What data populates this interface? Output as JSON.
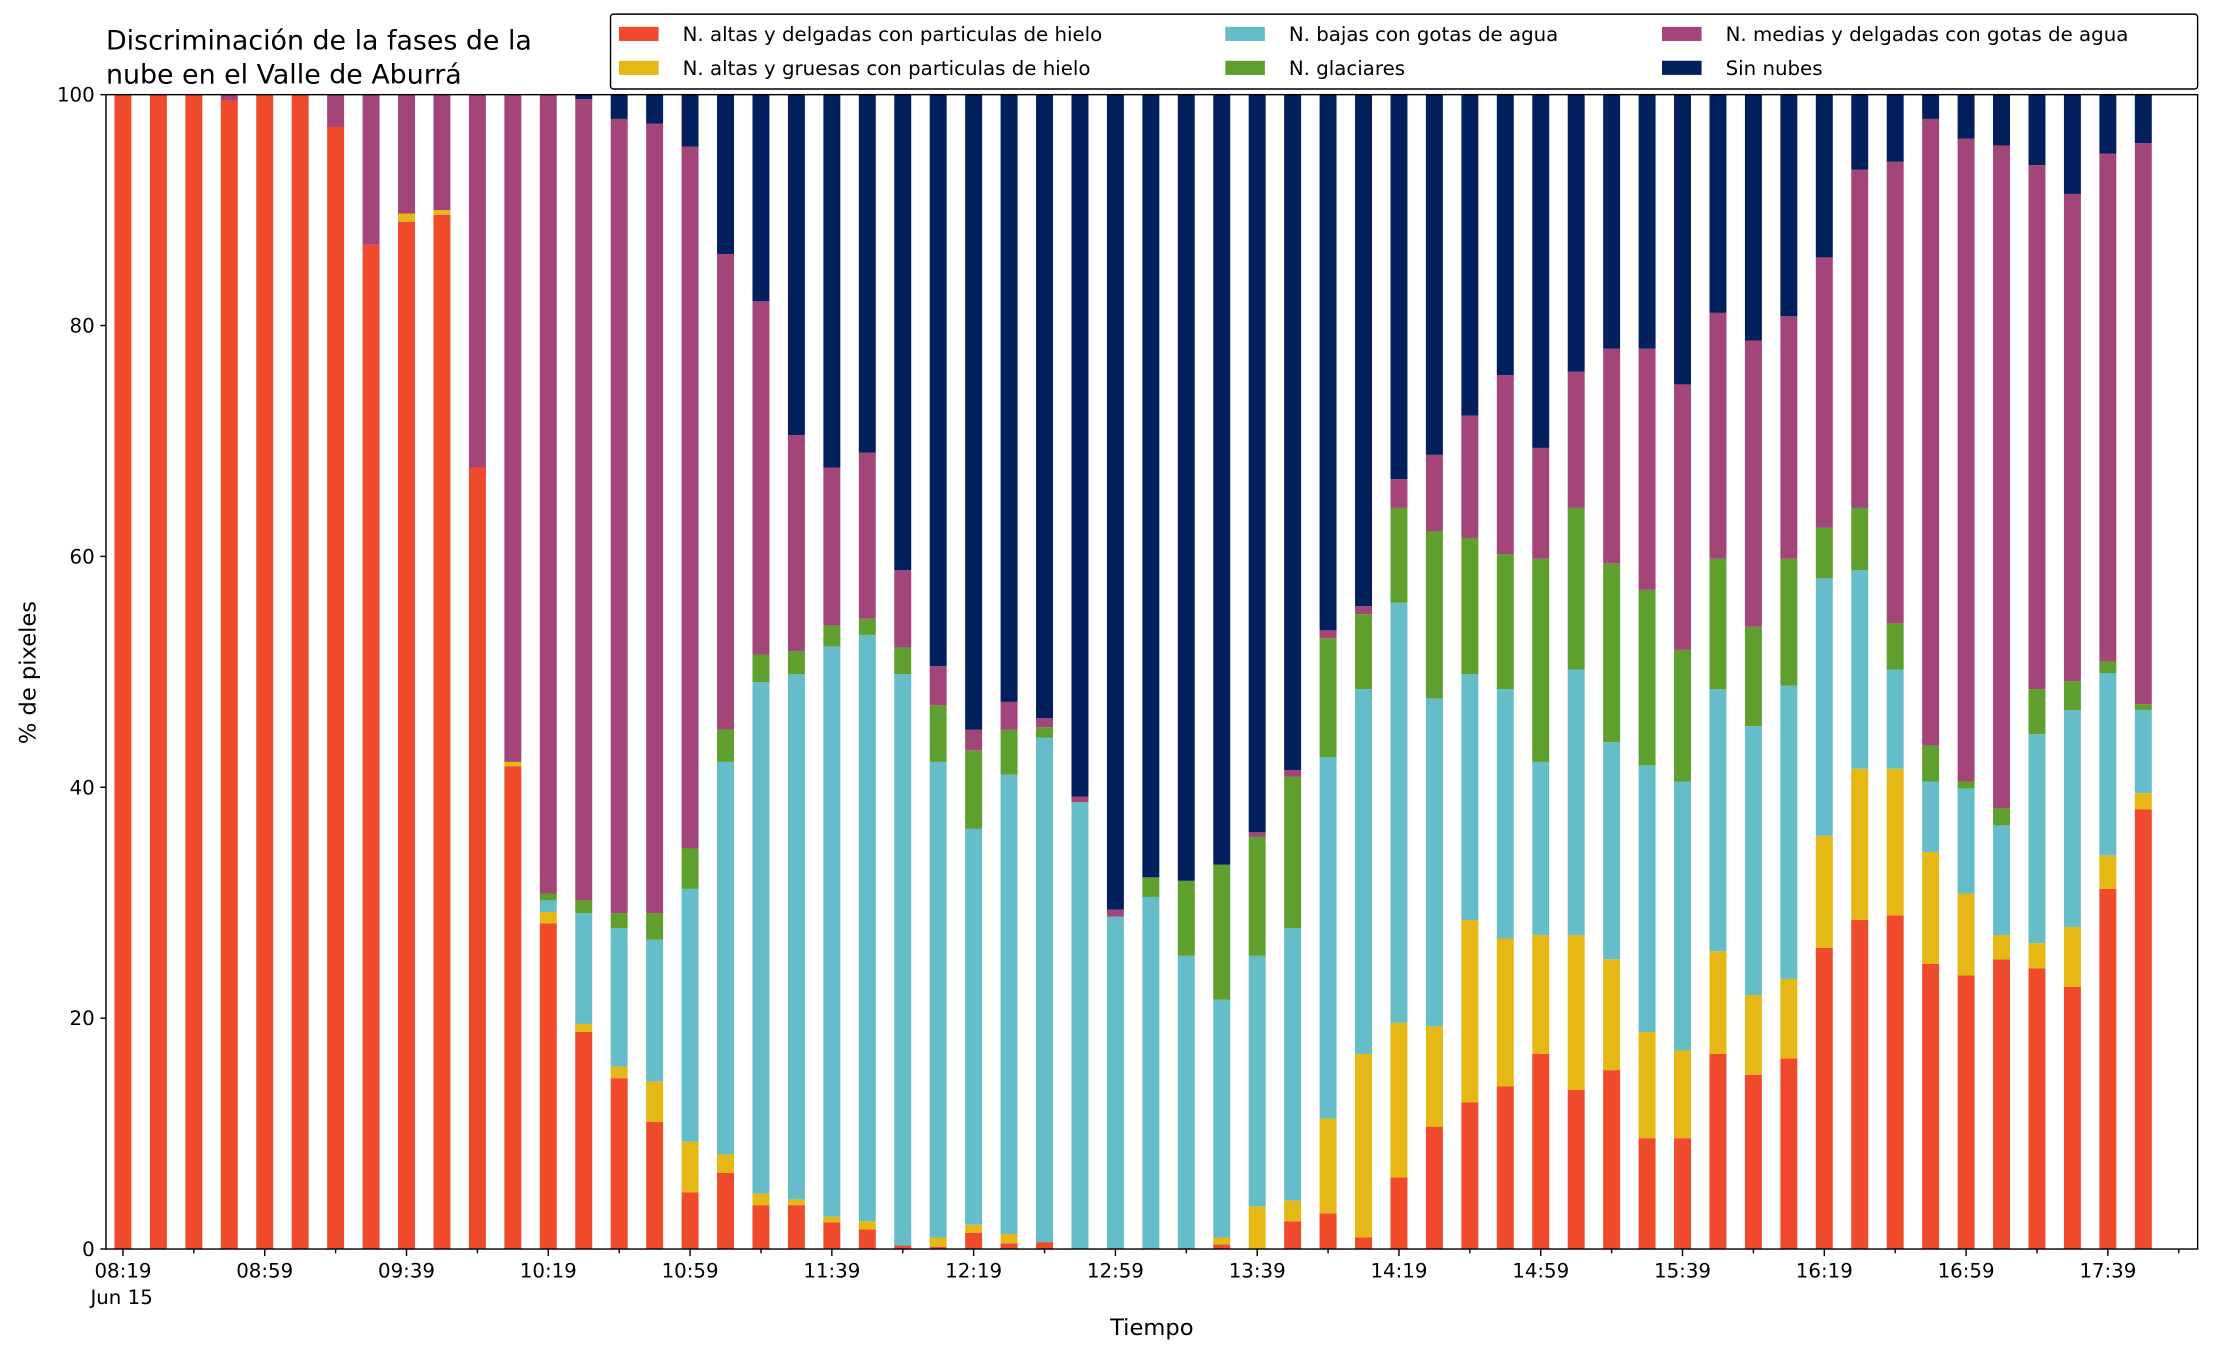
{
  "chart_data": {
    "type": "stacked_bar",
    "title": [
      "Discriminación de la fases de la",
      "nube en el Valle de Aburrá"
    ],
    "x_label": "Tiempo",
    "y_label": "% de pixeles",
    "x_date_label": "Jun 15",
    "categories": [
      "08:19",
      null,
      null,
      null,
      "08:59",
      null,
      null,
      null,
      "09:39",
      null,
      null,
      null,
      "10:19",
      null,
      null,
      null,
      "10:59",
      null,
      null,
      null,
      "11:39",
      null,
      null,
      null,
      "12:19",
      null,
      null,
      null,
      "12:59",
      null,
      null,
      null,
      "13:39",
      null,
      null,
      null,
      "14:19",
      null,
      null,
      null,
      "14:59",
      null,
      null,
      null,
      "15:39",
      null,
      null,
      null,
      "16:19",
      null,
      null,
      null,
      "16:59",
      null,
      null,
      null,
      "17:39",
      null
    ],
    "ylim": [
      0,
      100
    ],
    "yticks": [
      0,
      20,
      40,
      60,
      80,
      100
    ],
    "legend": "top-right",
    "series": [
      {
        "name": "N. altas y delgadas con particulas de hielo",
        "color": "#ee4a2b",
        "values": [
          100,
          100,
          100,
          99.5,
          100,
          100,
          97.2,
          87,
          89,
          89.6,
          67.7,
          41.8,
          28.2,
          18.8,
          14.8,
          11,
          4.9,
          6.6,
          3.8,
          3.8,
          2.3,
          1.7,
          0.3,
          0.2,
          1.4,
          0.5,
          0.6,
          0,
          0,
          0,
          0,
          0.4,
          0,
          2.4,
          3.1,
          1,
          6.2,
          10.6,
          12.7,
          14.1,
          16.9,
          13.8,
          15.5,
          9.6,
          9.6,
          16.9,
          15.1,
          16.5,
          26.1,
          28.5,
          28.9,
          24.7,
          23.7,
          25.1,
          24.3,
          22.7,
          31.2,
          38.1
        ]
      },
      {
        "name": "N. altas y gruesas con particulas de hielo",
        "color": "#e6b815",
        "values": [
          0,
          0,
          0,
          0,
          0,
          0,
          0,
          0,
          0.7,
          0.4,
          0,
          0.4,
          1,
          0.7,
          1,
          3.5,
          4.4,
          1.6,
          1,
          0.5,
          0.5,
          0.7,
          0,
          0.8,
          0.7,
          0.8,
          0,
          0,
          0,
          0,
          0,
          0.6,
          3.7,
          1.8,
          8.2,
          15.9,
          13.4,
          8.7,
          15.8,
          12.8,
          10.3,
          13.4,
          9.6,
          9.2,
          7.6,
          8.9,
          6.9,
          6.9,
          9.7,
          13.1,
          12.7,
          9.7,
          7.1,
          2.1,
          2.2,
          5.2,
          2.9,
          1.4
        ]
      },
      {
        "name": "N. bajas con gotas de agua",
        "color": "#65bdca",
        "values": [
          0,
          0,
          0,
          0,
          0,
          0,
          0,
          0,
          0,
          0,
          0,
          0,
          1,
          9.6,
          12,
          12.3,
          21.9,
          34,
          44.3,
          45.5,
          49.4,
          50.8,
          49.5,
          41.2,
          34.3,
          39.8,
          43.7,
          38.7,
          28.8,
          30.5,
          25.4,
          20.6,
          21.7,
          23.6,
          31.3,
          31.6,
          36.4,
          28.4,
          21.3,
          21.6,
          15,
          23,
          18.8,
          23.1,
          23.3,
          22.7,
          23.3,
          25.4,
          22.3,
          17.2,
          8.6,
          6.1,
          9.1,
          9.5,
          18.1,
          18.8,
          15.8,
          7.2
        ]
      },
      {
        "name": "N. glaciares",
        "color": "#5e9f2e",
        "values": [
          0,
          0,
          0,
          0,
          0,
          0,
          0,
          0,
          0,
          0,
          0,
          0,
          0.6,
          1.1,
          1.3,
          2.3,
          3.5,
          2.8,
          2.4,
          2,
          1.8,
          1.4,
          2.3,
          4.9,
          6.8,
          3.9,
          0.9,
          0,
          0,
          1.7,
          6.5,
          11.7,
          10.3,
          13.1,
          10.3,
          6.5,
          8.2,
          14.5,
          11.8,
          11.7,
          17.6,
          14,
          15.5,
          15.2,
          11.4,
          11.3,
          8.6,
          11,
          4.4,
          5.4,
          4,
          3.1,
          0.6,
          1.5,
          3.9,
          2.5,
          1,
          0.5
        ]
      },
      {
        "name": "N. medias y delgadas con gotas de agua",
        "color": "#a4457a",
        "values": [
          0,
          0,
          0,
          0.5,
          0,
          0,
          2.8,
          13,
          10.3,
          10,
          32.3,
          57.8,
          69.2,
          69.4,
          68.8,
          68.4,
          60.8,
          41.2,
          30.6,
          18.7,
          13.7,
          14.4,
          6.7,
          3.4,
          1.8,
          2.4,
          0.8,
          0.5,
          0.6,
          0,
          0,
          0,
          0.4,
          0.6,
          0.7,
          0.7,
          2.5,
          6.6,
          10.6,
          15.5,
          9.6,
          11.8,
          18.6,
          20.9,
          23,
          21.3,
          24.8,
          21,
          23.4,
          29.3,
          40,
          54.3,
          55.7,
          57.4,
          45.4,
          42.2,
          44,
          48.6
        ]
      },
      {
        "name": "Sin nubes",
        "color": "#021f5e",
        "values": [
          0,
          0,
          0,
          0,
          0,
          0,
          0,
          0,
          0,
          0,
          0,
          0,
          0,
          0.4,
          2.1,
          2.5,
          4.5,
          13.8,
          17.9,
          29.5,
          32.3,
          31,
          41.2,
          49.5,
          55,
          52.6,
          54,
          60.8,
          70.6,
          67.8,
          68.1,
          66.7,
          63.9,
          58.5,
          46.4,
          44.3,
          33.3,
          31.2,
          27.8,
          24.3,
          30.6,
          24,
          22,
          22,
          25.1,
          18.9,
          21.3,
          19.2,
          14.1,
          6.5,
          5.8,
          2.1,
          3.8,
          4.4,
          6.1,
          8.6,
          5.1,
          4.2
        ]
      }
    ]
  }
}
